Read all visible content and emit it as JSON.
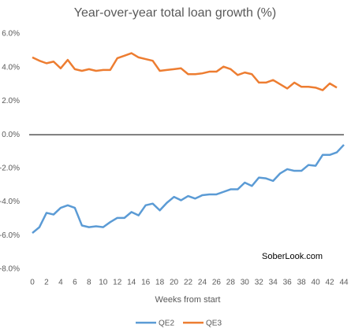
{
  "chart_data": {
    "type": "line",
    "title": "Year-over-year total loan growth (%)",
    "xlabel": "Weeks from start",
    "annotation": "SoberLook.com",
    "x": [
      0,
      1,
      2,
      3,
      4,
      5,
      6,
      7,
      8,
      9,
      10,
      11,
      12,
      13,
      14,
      15,
      16,
      17,
      18,
      19,
      20,
      21,
      22,
      23,
      24,
      25,
      26,
      27,
      28,
      29,
      30,
      31,
      32,
      33,
      34,
      35,
      36,
      37,
      38,
      39,
      40,
      41,
      42,
      43,
      44
    ],
    "series": [
      {
        "name": "QE2",
        "color": "#5b9bd5",
        "values": [
          -5.85,
          -5.5,
          -4.65,
          -4.75,
          -4.35,
          -4.2,
          -4.35,
          -5.4,
          -5.5,
          -5.45,
          -5.5,
          -5.2,
          -4.95,
          -4.95,
          -4.6,
          -4.8,
          -4.2,
          -4.1,
          -4.5,
          -4.05,
          -3.7,
          -3.9,
          -3.65,
          -3.8,
          -3.6,
          -3.55,
          -3.55,
          -3.4,
          -3.25,
          -3.25,
          -2.85,
          -3.05,
          -2.55,
          -2.6,
          -2.75,
          -2.3,
          -2.05,
          -2.15,
          -2.15,
          -1.8,
          -1.85,
          -1.2,
          -1.2,
          -1.05,
          -0.6
        ]
      },
      {
        "name": "QE3",
        "color": "#ed7d31",
        "values": [
          4.6,
          4.4,
          4.25,
          4.35,
          3.95,
          4.45,
          3.9,
          3.8,
          3.9,
          3.8,
          3.85,
          3.85,
          4.55,
          4.7,
          4.85,
          4.6,
          4.5,
          4.4,
          3.8,
          3.85,
          3.9,
          3.95,
          3.6,
          3.6,
          3.65,
          3.75,
          3.75,
          4.05,
          3.9,
          3.55,
          3.7,
          3.6,
          3.1,
          3.1,
          3.25,
          3.0,
          2.75,
          3.1,
          2.85,
          2.85,
          2.8,
          2.65,
          3.05,
          2.8,
          null
        ]
      }
    ],
    "xlim": [
      0,
      44
    ],
    "xticks": [
      0,
      2,
      4,
      6,
      8,
      10,
      12,
      14,
      16,
      18,
      20,
      22,
      24,
      26,
      28,
      30,
      32,
      34,
      36,
      38,
      40,
      42,
      44
    ],
    "ylim": [
      -8,
      6
    ],
    "yticks": [
      {
        "value": 6,
        "label": "6.0%"
      },
      {
        "value": 4,
        "label": "4.0%"
      },
      {
        "value": 2,
        "label": "2.0%"
      },
      {
        "value": 0,
        "label": "0.0%"
      },
      {
        "value": -2,
        "label": "-2.0%"
      },
      {
        "value": -4,
        "label": "-4.0%"
      },
      {
        "value": -6,
        "label": "-6.0%"
      },
      {
        "value": -8,
        "label": "-8.0%"
      }
    ],
    "grid": false,
    "legend": "bottom"
  }
}
